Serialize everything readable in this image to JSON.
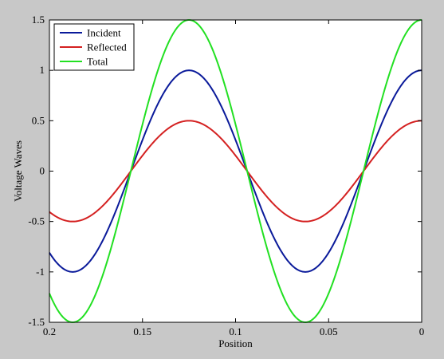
{
  "chart_data": {
    "type": "line",
    "title": "",
    "xlabel": "Position",
    "ylabel": "Voltage Waves",
    "xlim": [
      0.2,
      0
    ],
    "ylim": [
      -1.5,
      1.5
    ],
    "x_reversed": true,
    "grid": false,
    "legend_position": "top-left",
    "x_ticks": [
      0.2,
      0.15,
      0.1,
      0.05,
      0
    ],
    "x_tick_labels": [
      "0.2",
      "0.15",
      "0.1",
      "0.05",
      "0"
    ],
    "y_ticks": [
      -1.5,
      -1,
      -0.5,
      0,
      0.5,
      1,
      1.5
    ],
    "y_tick_labels": [
      "-1.5",
      "-1",
      "-0.5",
      "0",
      "0.5",
      "1",
      "1.5"
    ],
    "wavelength": 0.125,
    "x": [
      0,
      0.0125,
      0.025,
      0.0375,
      0.05,
      0.0625,
      0.075,
      0.0875,
      0.1,
      0.1125,
      0.125,
      0.1375,
      0.15,
      0.1625,
      0.175,
      0.1875,
      0.2
    ],
    "series": [
      {
        "name": "Incident",
        "color": "#0a1a9a",
        "amplitude": 1,
        "values": [
          1,
          0.809,
          0.309,
          -0.309,
          -0.809,
          -1,
          -0.809,
          -0.309,
          0.309,
          0.809,
          1,
          0.809,
          0.309,
          -0.309,
          -0.809,
          -1,
          -0.809
        ]
      },
      {
        "name": "Reflected",
        "color": "#d42020",
        "amplitude": 0.5,
        "values": [
          0.5,
          0.405,
          0.155,
          -0.155,
          -0.405,
          -0.5,
          -0.405,
          -0.155,
          0.155,
          0.405,
          0.5,
          0.405,
          0.155,
          -0.155,
          -0.405,
          -0.5,
          -0.405
        ]
      },
      {
        "name": "Total",
        "color": "#22e022",
        "amplitude": 1.5,
        "values": [
          1.5,
          1.214,
          0.464,
          -0.464,
          -1.214,
          -1.5,
          -1.214,
          -0.464,
          0.464,
          1.214,
          1.5,
          1.214,
          0.464,
          -0.464,
          -1.214,
          -1.5,
          -1.214
        ]
      }
    ]
  }
}
